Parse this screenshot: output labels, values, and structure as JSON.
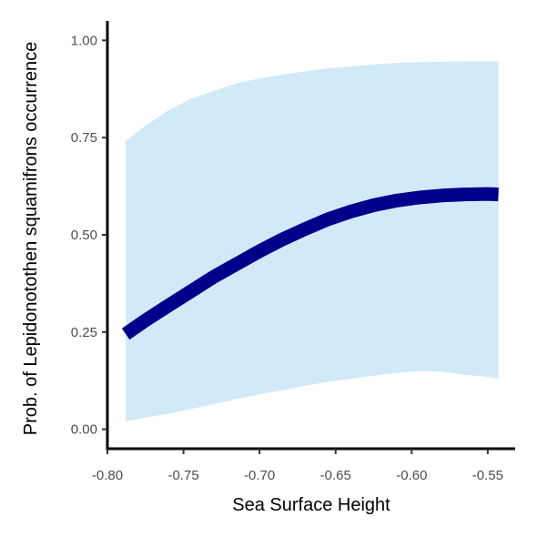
{
  "chart_data": {
    "type": "line",
    "xlabel": "Sea Surface Height",
    "ylabel": "Prob. of  Lepidonotothen squamifrons  occurrence",
    "xlim": [
      -0.8,
      -0.532
    ],
    "ylim": [
      -0.05,
      1.05
    ],
    "x_ticks": [
      -0.8,
      -0.75,
      -0.7,
      -0.65,
      -0.6,
      -0.55
    ],
    "x_tick_labels": [
      "-0.80",
      "-0.75",
      "-0.70",
      "-0.65",
      "-0.60",
      "-0.55"
    ],
    "y_ticks": [
      0.0,
      0.25,
      0.5,
      0.75,
      1.0
    ],
    "y_tick_labels": [
      "0.00",
      "0.25",
      "0.50",
      "0.75",
      "1.00"
    ],
    "grid": false,
    "series": [
      {
        "x": [
          -0.788,
          -0.775,
          -0.76,
          -0.745,
          -0.73,
          -0.715,
          -0.7,
          -0.685,
          -0.67,
          -0.655,
          -0.64,
          -0.625,
          -0.61,
          -0.595,
          -0.58,
          -0.565,
          -0.55,
          -0.543
        ],
        "y": [
          0.245,
          0.28,
          0.318,
          0.355,
          0.392,
          0.425,
          0.458,
          0.488,
          0.515,
          0.54,
          0.56,
          0.576,
          0.588,
          0.596,
          0.601,
          0.604,
          0.605,
          0.604
        ],
        "lower": [
          0.02,
          0.03,
          0.04,
          0.052,
          0.065,
          0.078,
          0.09,
          0.1,
          0.112,
          0.122,
          0.13,
          0.138,
          0.145,
          0.15,
          0.148,
          0.14,
          0.135,
          0.13
        ],
        "upper": [
          0.742,
          0.78,
          0.82,
          0.85,
          0.87,
          0.89,
          0.902,
          0.912,
          0.92,
          0.928,
          0.933,
          0.938,
          0.942,
          0.944,
          0.945,
          0.946,
          0.946,
          0.946
        ],
        "line_color": "#00008b",
        "band_color": "#d0eaf7"
      }
    ]
  }
}
